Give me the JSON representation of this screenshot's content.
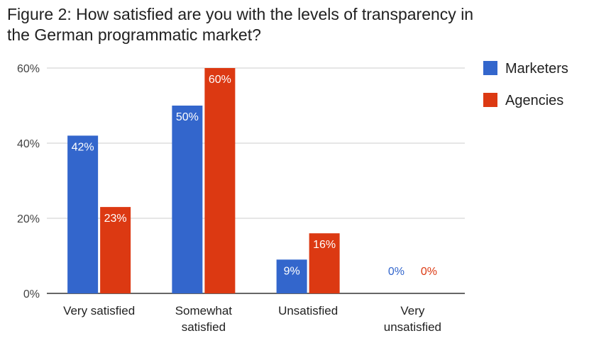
{
  "chart_data": {
    "type": "bar",
    "title": "Figure 2: How satisfied are you with the levels of transparency in the German programmatic market?",
    "title_lines": [
      "Figure 2: How satisfied are you with the levels of transparency in",
      "the German programmatic market?"
    ],
    "categories": [
      "Very satisfied",
      "Somewhat satisfied",
      "Unsatisfied",
      "Very unsatisfied"
    ],
    "category_lines": [
      [
        "Very satisfied"
      ],
      [
        "Somewhat",
        "satisfied"
      ],
      [
        "Unsatisfied"
      ],
      [
        "Very",
        "unsatisfied"
      ]
    ],
    "series": [
      {
        "name": "Marketers",
        "color": "#3366cc",
        "values": [
          42,
          50,
          9,
          0
        ],
        "labels": [
          "42%",
          "50%",
          "9%",
          "0%"
        ]
      },
      {
        "name": "Agencies",
        "color": "#dc3912",
        "values": [
          23,
          60,
          16,
          0
        ],
        "labels": [
          "23%",
          "60%",
          "16%",
          "0%"
        ]
      }
    ],
    "ylim": [
      0,
      60
    ],
    "yticks": [
      0,
      20,
      40,
      60
    ],
    "ytick_labels": [
      "0%",
      "20%",
      "40%",
      "60%"
    ],
    "grid": true,
    "legend_position": "top-right",
    "xlabel": "",
    "ylabel": ""
  }
}
